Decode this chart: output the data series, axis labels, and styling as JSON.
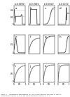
{
  "figure_title": "Figure 17",
  "caption": "Figure 17 - Contamination approximation for the trilayer material described in Table 4:\nconcentration profiles (a to h) and scaled desorption kinetics (i to l)",
  "panel_labels": [
    "a",
    "b",
    "c",
    "d",
    "e",
    "f",
    "g",
    "h",
    "i",
    "j",
    "k",
    "l"
  ],
  "col_titles": [
    "t=0.0000",
    "t=0.0010",
    "t=0.0100",
    "t=1.0000"
  ],
  "left_ytick_labels_row0": [
    "1",
    "0.8",
    "0.4",
    "0"
  ],
  "background_color": "#ffffff",
  "line_dark": "#444444",
  "line_gray": "#999999",
  "line_light": "#cccccc"
}
